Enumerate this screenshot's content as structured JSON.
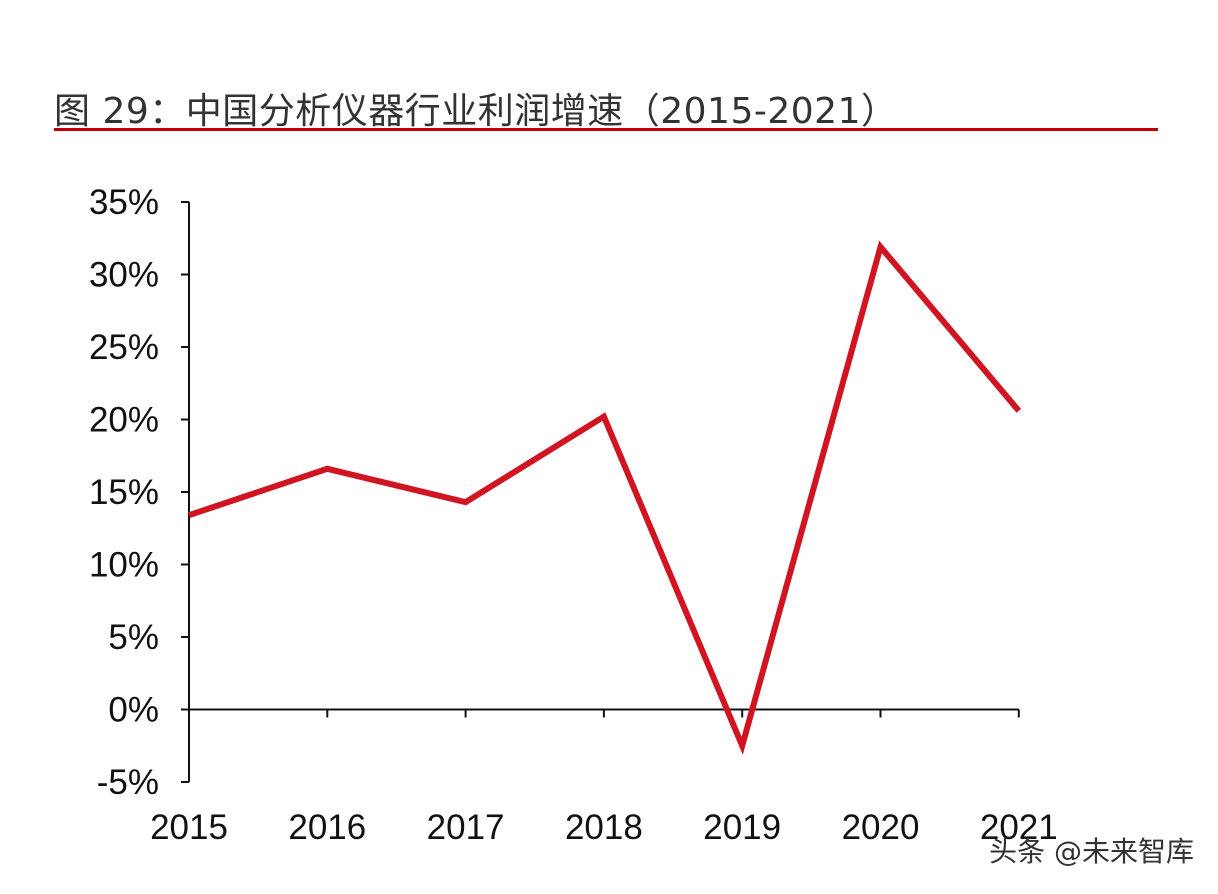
{
  "figure": {
    "title": "图 29：中国分析仪器行业利润增速（2015-2021）"
  },
  "watermark": "头条 @未来智库",
  "colors": {
    "series": "#d01421",
    "title_rule": "#c00000",
    "axis": "#111111"
  },
  "chart_data": {
    "type": "line",
    "title": "",
    "xlabel": "",
    "ylabel": "",
    "categories": [
      "2015",
      "2016",
      "2017",
      "2018",
      "2019",
      "2020",
      "2021"
    ],
    "series": [
      {
        "values": [
          13.4,
          16.6,
          14.3,
          20.2,
          -2.5,
          31.9,
          20.6
        ]
      }
    ],
    "ylim": [
      -5,
      35
    ],
    "yticks": [
      35,
      30,
      25,
      20,
      15,
      10,
      5,
      0,
      -5
    ],
    "ytick_labels": [
      "35%",
      "30%",
      "25%",
      "20%",
      "15%",
      "10%",
      "5%",
      "0%",
      "-5%"
    ],
    "grid": false,
    "legend": "none"
  }
}
